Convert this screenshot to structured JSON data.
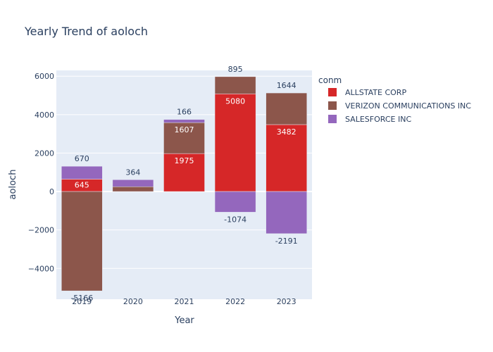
{
  "chart_data": {
    "type": "bar",
    "barmode": "relative",
    "title": "Yearly Trend of aoloch",
    "xlabel": "Year",
    "ylabel": "aoloch",
    "categories": [
      "2019",
      "2020",
      "2021",
      "2022",
      "2023"
    ],
    "ylim": [
      -5600,
      6300
    ],
    "yticks": [
      -4000,
      -2000,
      0,
      2000,
      4000,
      6000
    ],
    "yticklabels": [
      "−4000",
      "−2000",
      "0",
      "2000",
      "4000",
      "6000"
    ],
    "grid": true,
    "legend": {
      "title": "conm",
      "position": "right"
    },
    "series": [
      {
        "name": "ALLSTATE CORP",
        "color": "#d62728",
        "values": [
          645,
          null,
          1975,
          5080,
          3482
        ],
        "labels": [
          "645",
          "",
          "1975",
          "5080",
          "3482"
        ],
        "label_position": [
          "inside",
          "none",
          "inside",
          "inside",
          "inside"
        ]
      },
      {
        "name": "VERIZON COMMUNICATIONS INC",
        "color": "#8c564b",
        "values": [
          -5166,
          250,
          1607,
          895,
          1644
        ],
        "labels": [
          "-5166",
          "",
          "1607",
          "895",
          "1644"
        ],
        "label_position": [
          "outside",
          "none",
          "inside",
          "outside",
          "outside"
        ]
      },
      {
        "name": "SALESFORCE INC",
        "color": "#9467bd",
        "values": [
          670,
          364,
          166,
          -1074,
          -2191
        ],
        "labels": [
          "670",
          "364",
          "166",
          "-1074",
          "-2191"
        ],
        "label_position": [
          "outside",
          "outside",
          "outside",
          "outside",
          "outside"
        ]
      }
    ],
    "colors": {
      "plot_bg": "#e5ecf6",
      "gridline": "#ffffff",
      "text": "#2a3f5f"
    }
  }
}
